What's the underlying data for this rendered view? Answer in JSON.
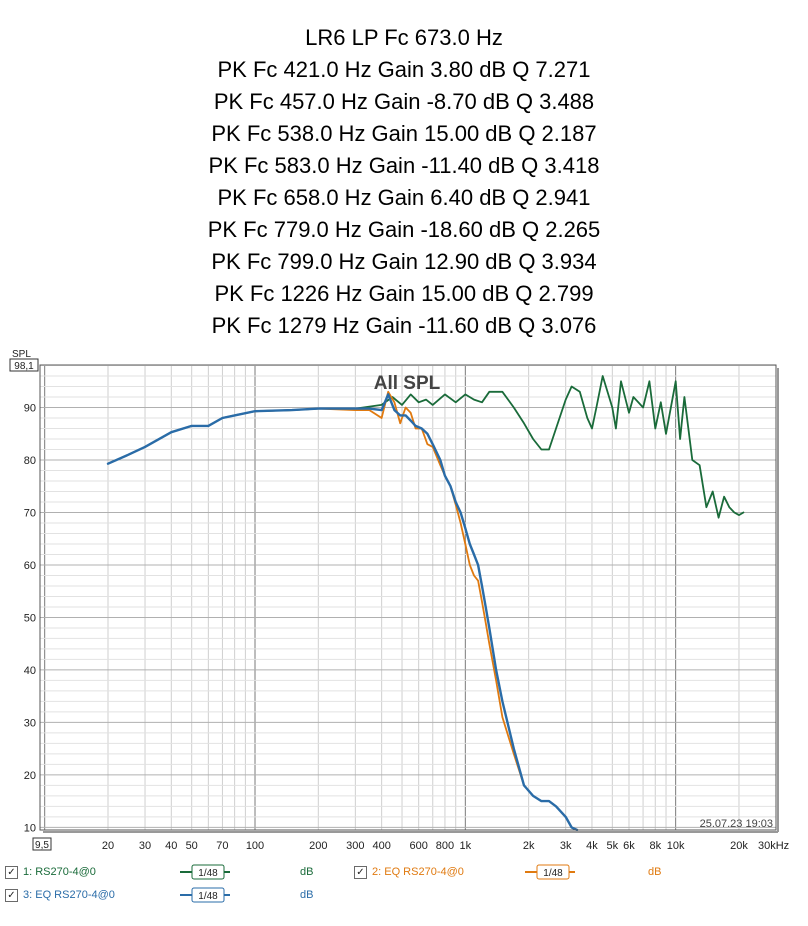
{
  "header_lines": [
    "LR6 LP Fc 673.0 Hz",
    "PK Fc 421.0 Hz Gain 3.80 dB Q 7.271",
    "PK Fc 457.0 Hz Gain -8.70 dB Q 3.488",
    "PK Fc 538.0 Hz Gain 15.00 dB Q 2.187",
    "PK Fc 583.0 Hz Gain -11.40 dB Q 3.418",
    "PK Fc 658.0 Hz Gain 6.40 dB Q 2.941",
    "PK Fc 779.0 Hz Gain -18.60 dB Q 2.265",
    "PK Fc 799.0 Hz Gain 12.90 dB Q 3.934",
    "PK Fc 1226 Hz Gain 15.00 dB Q 2.799",
    "PK Fc 1279 Hz Gain -11.60 dB Q 3.076"
  ],
  "plot": {
    "in_plot_title": "All SPL",
    "y_axis_label": "SPL",
    "y_max_box": "98,1",
    "y_min_box": "9,5",
    "timestamp": "25.07.23 19:03",
    "x_tick_labels": [
      "20",
      "30",
      "40",
      "50",
      "70",
      "100",
      "200",
      "300",
      "400",
      "600",
      "800",
      "1k",
      "2k",
      "3k",
      "4k",
      "5k",
      "6k",
      "8k",
      "10k",
      "20k",
      "30kHz"
    ],
    "y_tick_labels": [
      "90",
      "80",
      "70",
      "60",
      "50",
      "40",
      "30",
      "20",
      "10"
    ]
  },
  "legend": [
    {
      "checkbox": "✓",
      "name": "1: RS270-4@0",
      "smoothing_label": "1/48",
      "unit": "dB",
      "color": "#1a6b3a"
    },
    {
      "checkbox": "✓",
      "name": "2: EQ RS270-4@0",
      "smoothing_label": "1/48",
      "unit": "dB",
      "color": "#e07a10"
    },
    {
      "checkbox": "✓",
      "name": "3: EQ RS270-4@0",
      "smoothing_label": "1/48",
      "unit": "dB",
      "color": "#2a6ca8"
    }
  ],
  "chart_data": {
    "type": "line",
    "title": "All SPL",
    "xlabel": "",
    "ylabel": "SPL",
    "xscale": "log",
    "xlim": [
      9.5,
      30000
    ],
    "ylim": [
      9.5,
      98.1
    ],
    "grid": true,
    "legend_position": "bottom",
    "series": [
      {
        "name": "1: RS270-4@0",
        "color": "#1a6b3a",
        "x": [
          20,
          25,
          30,
          40,
          50,
          60,
          70,
          80,
          100,
          150,
          200,
          300,
          400,
          450,
          500,
          550,
          600,
          650,
          700,
          800,
          900,
          1000,
          1100,
          1200,
          1300,
          1500,
          1700,
          1900,
          2100,
          2300,
          2500,
          3000,
          3200,
          3500,
          3800,
          4000,
          4200,
          4500,
          5000,
          5200,
          5500,
          6000,
          6300,
          7000,
          7500,
          8000,
          8500,
          9000,
          10000,
          10500,
          11000,
          12000,
          13000,
          14000,
          15000,
          16000,
          17000,
          18000,
          19000,
          20000,
          21000
        ],
        "y": [
          79.3,
          81,
          82.5,
          85.3,
          86.5,
          86.5,
          88,
          88.5,
          89.3,
          89.5,
          89.8,
          89.8,
          90.5,
          92,
          90.5,
          92.5,
          91,
          91.5,
          90.5,
          92.5,
          91,
          92.5,
          91.5,
          91,
          93,
          93,
          90,
          87,
          84,
          82,
          82,
          91.5,
          94,
          93,
          88,
          86,
          90,
          96,
          90,
          86,
          95,
          89,
          92,
          90,
          95,
          86,
          91,
          85,
          95,
          84,
          92,
          80,
          79,
          71,
          74,
          69,
          73,
          71,
          70,
          69.5,
          70
        ]
      },
      {
        "name": "2: EQ RS270-4@0",
        "color": "#e07a10",
        "x": [
          20,
          25,
          30,
          40,
          50,
          60,
          70,
          80,
          100,
          150,
          200,
          300,
          350,
          400,
          430,
          460,
          490,
          520,
          550,
          580,
          620,
          660,
          700,
          760,
          800,
          850,
          900,
          950,
          1000,
          1050,
          1100,
          1150,
          1200,
          1250,
          1300,
          1400,
          1500,
          1700,
          1900,
          2100,
          2300,
          2500,
          2700,
          3000,
          3200,
          3400
        ],
        "y": [
          79.3,
          81,
          82.5,
          85.3,
          86.5,
          86.5,
          88,
          88.5,
          89.3,
          89.5,
          89.8,
          89.5,
          89.5,
          88,
          93,
          91,
          87,
          90,
          89,
          86,
          86,
          83,
          82.5,
          79,
          77,
          75,
          71.5,
          68,
          64,
          60,
          58,
          57,
          53,
          49,
          45,
          38,
          31,
          24,
          18,
          16,
          15,
          15,
          14,
          12,
          10,
          9.5
        ]
      },
      {
        "name": "3: EQ RS270-4@0",
        "color": "#2a6ca8",
        "x": [
          20,
          25,
          30,
          40,
          50,
          60,
          70,
          80,
          100,
          150,
          200,
          300,
          350,
          400,
          430,
          460,
          490,
          520,
          550,
          580,
          620,
          660,
          700,
          760,
          800,
          850,
          900,
          950,
          1000,
          1050,
          1100,
          1150,
          1200,
          1250,
          1300,
          1400,
          1500,
          1700,
          1900,
          2100,
          2300,
          2500,
          2700,
          3000,
          3200,
          3400
        ],
        "y": [
          79.3,
          81,
          82.5,
          85.3,
          86.5,
          86.5,
          88,
          88.5,
          89.3,
          89.5,
          89.8,
          89.8,
          89.8,
          89.5,
          92.5,
          89.5,
          88.5,
          88.5,
          87.5,
          86.5,
          86,
          85,
          83,
          80,
          77,
          75,
          72,
          70,
          67,
          64,
          62,
          60,
          56,
          52,
          48,
          40,
          34,
          25,
          18,
          16,
          15,
          15,
          14,
          12,
          10,
          9.5
        ]
      }
    ]
  }
}
